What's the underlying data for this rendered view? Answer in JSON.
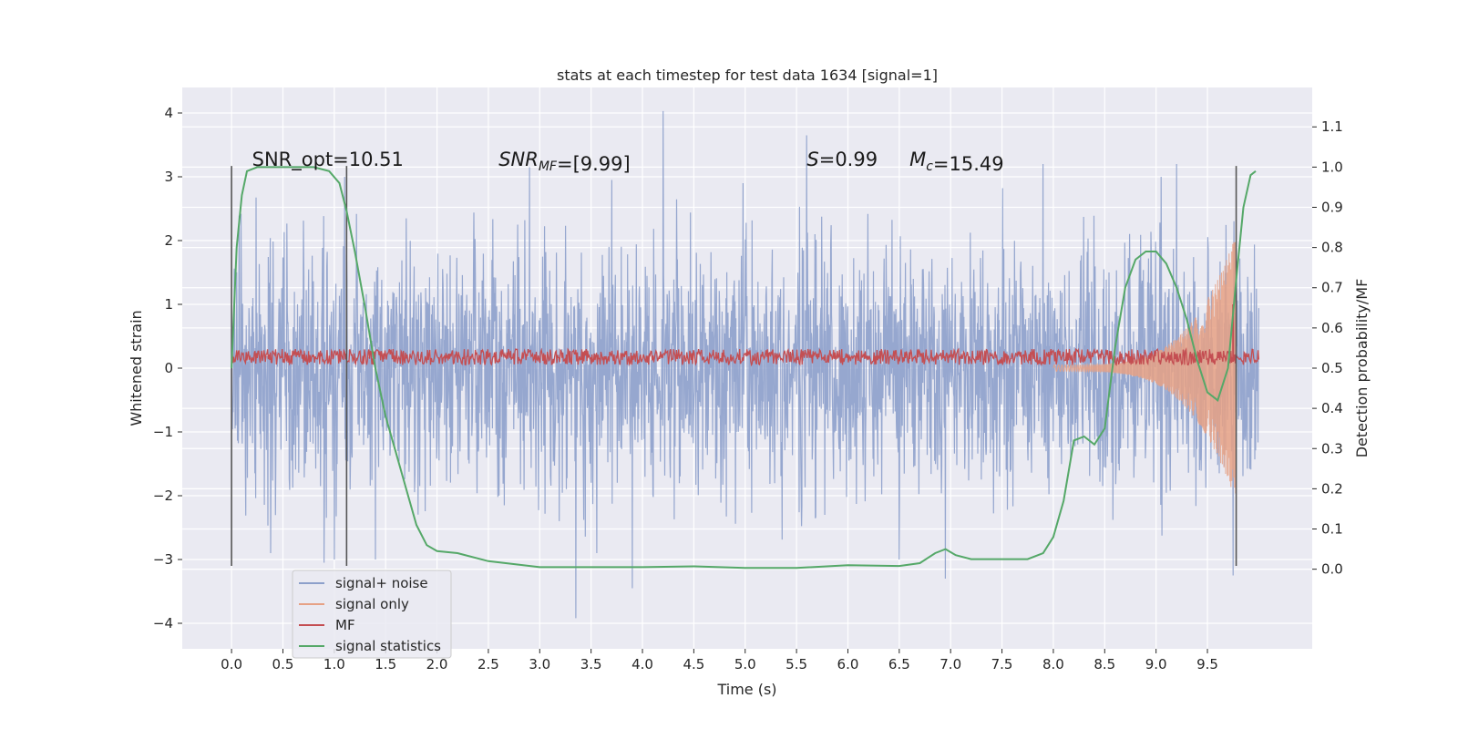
{
  "chart_data": {
    "type": "line",
    "title": "stats at each timestep for test data 1634 [signal=1]",
    "xlabel": "Time (s)",
    "ylabel_left": "Whitened strain",
    "ylabel_right": "Detection probability/MF",
    "xlim": [
      -0.48,
      10.52
    ],
    "ylim_left": [
      -4.4,
      4.4
    ],
    "ylim_right": [
      -0.198,
      1.198
    ],
    "x_ticks": [
      0.0,
      0.5,
      1.0,
      1.5,
      2.0,
      2.5,
      3.0,
      3.5,
      4.0,
      4.5,
      5.0,
      5.5,
      6.0,
      6.5,
      7.0,
      7.5,
      8.0,
      8.5,
      9.0,
      9.5
    ],
    "x_tick_labels": [
      "0.0",
      "0.5",
      "1.0",
      "1.5",
      "2.0",
      "2.5",
      "3.0",
      "3.5",
      "4.0",
      "4.5",
      "5.0",
      "5.5",
      "6.0",
      "6.5",
      "7.0",
      "7.5",
      "8.0",
      "8.5",
      "9.0",
      "9.5"
    ],
    "y_left_ticks": [
      -4,
      -3,
      -2,
      -1,
      0,
      1,
      2,
      3,
      4
    ],
    "y_left_tick_labels": [
      "−4",
      "−3",
      "−2",
      "−1",
      "0",
      "1",
      "2",
      "3",
      "4"
    ],
    "y_right_ticks": [
      0.0,
      0.1,
      0.2,
      0.3,
      0.4,
      0.5,
      0.6,
      0.7,
      0.8,
      0.9,
      1.0,
      1.1
    ],
    "y_right_tick_labels": [
      "0.0",
      "0.1",
      "0.2",
      "0.3",
      "0.4",
      "0.5",
      "0.6",
      "0.7",
      "0.8",
      "0.9",
      "1.0",
      "1.1"
    ],
    "grid": true,
    "legend_position": "lower-left",
    "series": [
      {
        "name": "signal+ noise",
        "axis": "left",
        "color": "#8da0cb",
        "kind": "noise",
        "x_range": [
          0.0,
          10.0
        ],
        "typical_range": [
          -1.3,
          1.3
        ],
        "peaks": [
          {
            "x": 4.2,
            "y": 4.03
          },
          {
            "x": 3.35,
            "y": -3.92
          },
          {
            "x": 3.9,
            "y": -3.45
          },
          {
            "x": 6.95,
            "y": -3.3
          },
          {
            "x": 9.75,
            "y": -3.25
          },
          {
            "x": 5.6,
            "y": 3.65
          },
          {
            "x": 1.1,
            "y": 3.0
          },
          {
            "x": 2.9,
            "y": 3.15
          },
          {
            "x": 7.9,
            "y": 3.2
          },
          {
            "x": 9.2,
            "y": 3.2
          },
          {
            "x": 1.0,
            "y": -3.0
          },
          {
            "x": 0.9,
            "y": -3.05
          },
          {
            "x": 1.4,
            "y": -3.0
          },
          {
            "x": 6.5,
            "y": -3.0
          },
          {
            "x": 3.7,
            "y": 2.95
          },
          {
            "x": 9.05,
            "y": 3.0
          }
        ]
      },
      {
        "name": "signal only",
        "axis": "left",
        "color": "#e6a185",
        "kind": "chirp",
        "x_range": [
          8.0,
          9.78
        ],
        "amplitude": [
          0.05,
          2.1
        ]
      },
      {
        "name": "MF",
        "axis": "left",
        "color": "#c44e52",
        "kind": "band",
        "x_range": [
          0.0,
          10.0
        ],
        "band": [
          0.05,
          0.3
        ]
      },
      {
        "name": "signal statistics",
        "axis": "right",
        "color": "#55a868",
        "kind": "line",
        "x": [
          0.0,
          0.05,
          0.1,
          0.15,
          0.25,
          0.4,
          0.6,
          0.8,
          0.95,
          1.05,
          1.12,
          1.2,
          1.3,
          1.4,
          1.5,
          1.6,
          1.7,
          1.8,
          1.9,
          2.0,
          2.2,
          2.5,
          3.0,
          3.5,
          4.0,
          4.5,
          5.0,
          5.5,
          6.0,
          6.5,
          6.7,
          6.85,
          6.95,
          7.05,
          7.2,
          7.5,
          7.75,
          7.9,
          8.0,
          8.1,
          8.2,
          8.3,
          8.4,
          8.5,
          8.6,
          8.7,
          8.8,
          8.9,
          9.0,
          9.1,
          9.2,
          9.3,
          9.4,
          9.5,
          9.6,
          9.7,
          9.78,
          9.85,
          9.92,
          9.97
        ],
        "y": [
          0.5,
          0.8,
          0.93,
          0.99,
          1.0,
          1.0,
          1.0,
          1.0,
          0.99,
          0.96,
          0.89,
          0.79,
          0.65,
          0.5,
          0.38,
          0.29,
          0.2,
          0.11,
          0.06,
          0.045,
          0.04,
          0.02,
          0.005,
          0.005,
          0.005,
          0.007,
          0.003,
          0.003,
          0.01,
          0.008,
          0.015,
          0.04,
          0.05,
          0.035,
          0.025,
          0.025,
          0.025,
          0.04,
          0.08,
          0.17,
          0.32,
          0.33,
          0.31,
          0.35,
          0.55,
          0.7,
          0.77,
          0.79,
          0.79,
          0.76,
          0.7,
          0.62,
          0.52,
          0.44,
          0.42,
          0.5,
          0.72,
          0.9,
          0.98,
          0.99
        ]
      }
    ],
    "vertical_lines": [
      {
        "x": 0.0,
        "y_from": -3.1,
        "y_to": 3.17
      },
      {
        "x": 1.12,
        "y_from": -3.1,
        "y_to": 3.17
      },
      {
        "x": 9.78,
        "y_from": -3.1,
        "y_to": 3.17
      }
    ],
    "annotations": [
      {
        "id": "snr_opt",
        "x": 0.2,
        "y": 3.17,
        "parts": [
          {
            "t": "SNR_opt=10.51"
          }
        ]
      },
      {
        "id": "snr_mf",
        "x": 2.6,
        "y": 3.17,
        "parts": [
          {
            "t": "SNR",
            "italic": true
          },
          {
            "t": "MF",
            "italic": true,
            "sub": true
          },
          {
            "t": "=[9.99]"
          }
        ]
      },
      {
        "id": "s_value",
        "x": 5.6,
        "y": 3.17,
        "parts": [
          {
            "t": "S",
            "italic": true
          },
          {
            "t": "=0.99"
          }
        ]
      },
      {
        "id": "mc_value",
        "x": 6.6,
        "y": 3.17,
        "parts": [
          {
            "t": "M",
            "italic": true
          },
          {
            "t": "c",
            "italic": true,
            "sub": true
          },
          {
            "t": "=15.49"
          }
        ]
      }
    ]
  }
}
